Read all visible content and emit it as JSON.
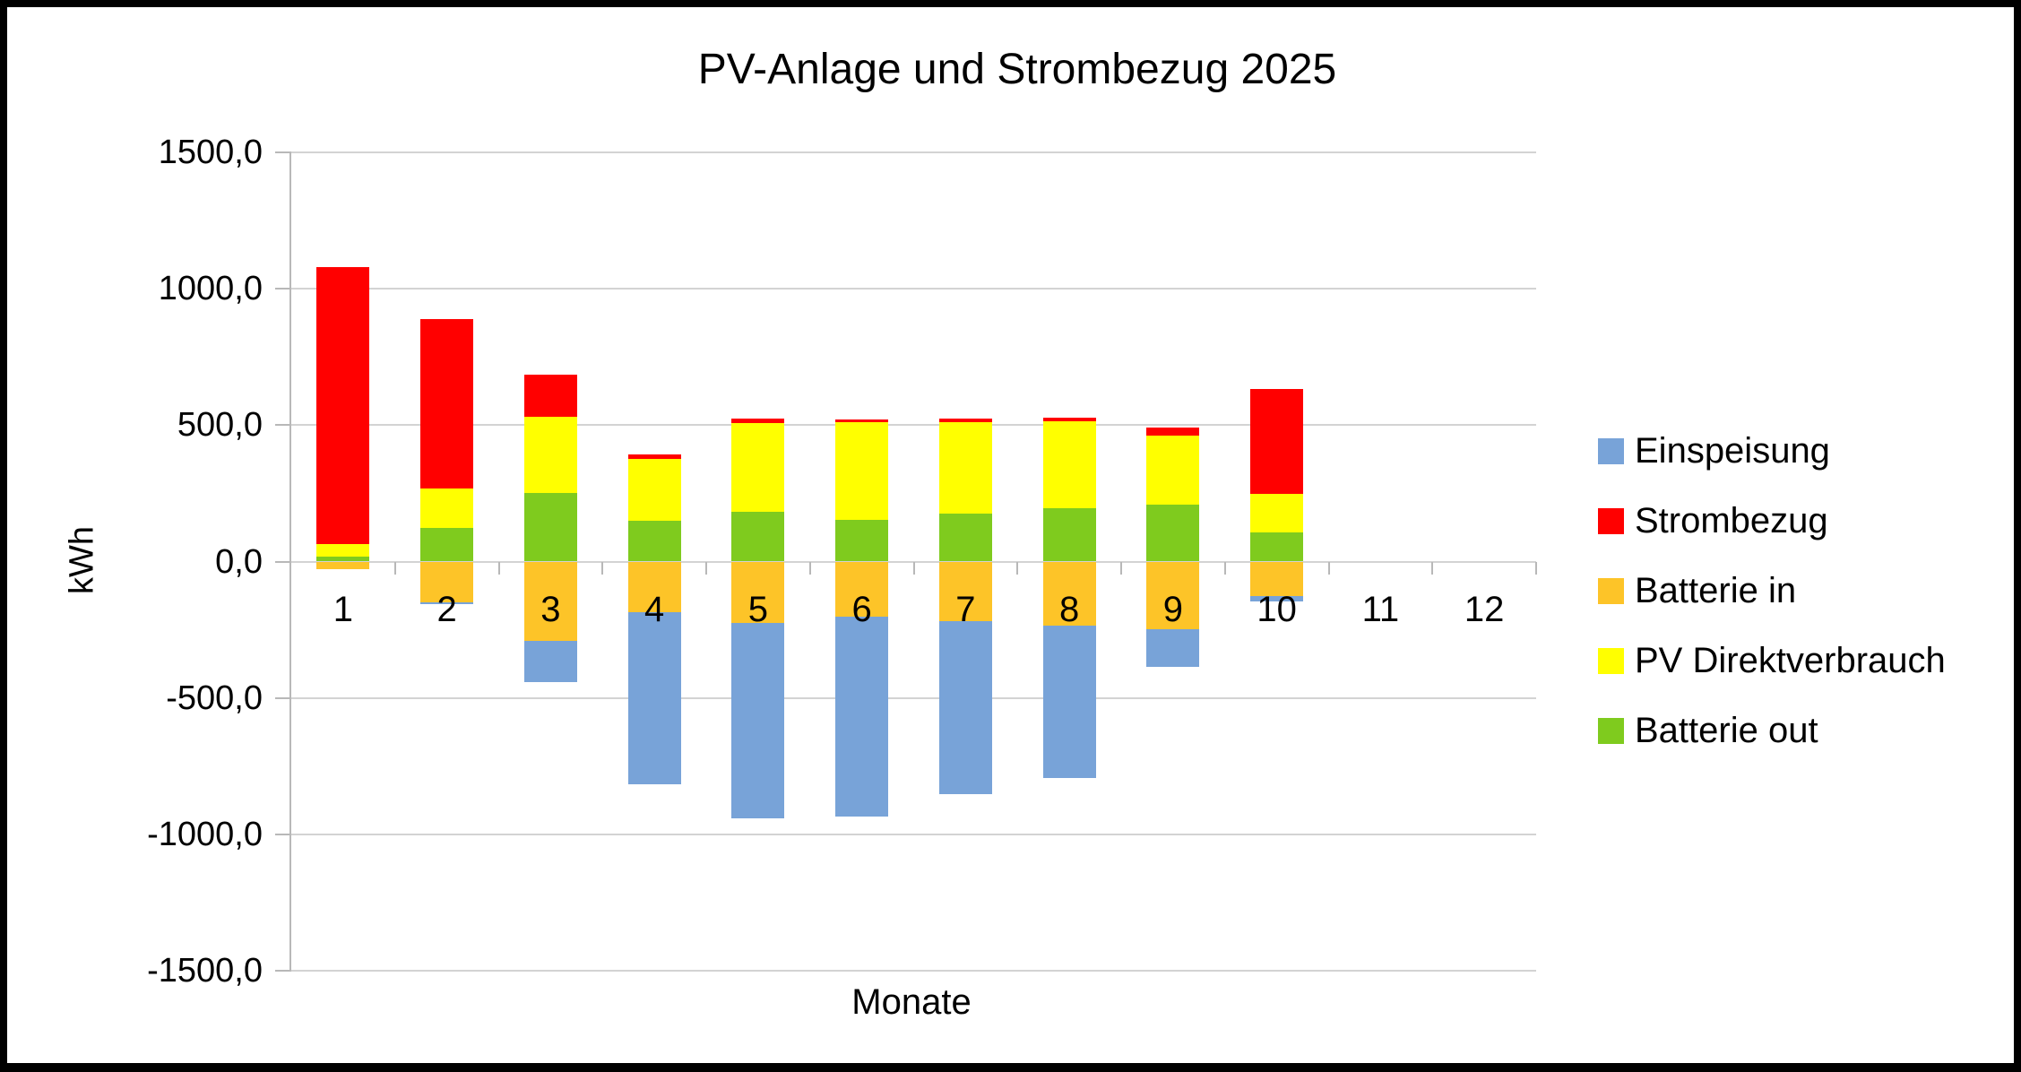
{
  "chart_data": {
    "type": "bar",
    "stacked": true,
    "title": "PV-Anlage und Strombezug 2025",
    "xlabel": "Monate",
    "ylabel": "kWh",
    "ylim": [
      -1500,
      1500
    ],
    "ytick_step": 500,
    "grid": true,
    "legend_position": "right",
    "categories": [
      "1",
      "2",
      "3",
      "4",
      "5",
      "6",
      "7",
      "8",
      "9",
      "10",
      "11",
      "12"
    ],
    "y_ticks": [
      {
        "value": 1500,
        "label": "1500,0"
      },
      {
        "value": 1000,
        "label": "1000,0"
      },
      {
        "value": 500,
        "label": "500,0"
      },
      {
        "value": 0,
        "label": "0,0"
      },
      {
        "value": -500,
        "label": "-500,0"
      },
      {
        "value": -1000,
        "label": "-1000,0"
      },
      {
        "value": -1500,
        "label": "-1500,0"
      }
    ],
    "series": [
      {
        "name": "Einspeisung",
        "color": "#78A3D8",
        "values": [
          0,
          -9,
          -151,
          -629,
          -718,
          -733,
          -634,
          -556,
          -140,
          -22,
          0,
          0
        ]
      },
      {
        "name": "Strombezug",
        "color": "#FF0000",
        "values": [
          1014,
          622,
          153,
          16,
          16,
          11,
          13,
          11,
          30,
          385,
          0,
          0
        ]
      },
      {
        "name": "Batterie in",
        "color": "#FDC428",
        "values": [
          -28,
          -148,
          -291,
          -187,
          -225,
          -201,
          -218,
          -236,
          -247,
          -125,
          0,
          0
        ]
      },
      {
        "name": "PV Direktverbrauch",
        "color": "#FFFF00",
        "values": [
          46,
          145,
          282,
          225,
          325,
          358,
          334,
          320,
          252,
          139,
          0,
          0
        ]
      },
      {
        "name": "Batterie out",
        "color": "#7FCB1E",
        "values": [
          18,
          122,
          250,
          151,
          182,
          152,
          176,
          195,
          209,
          108,
          0,
          0
        ]
      }
    ],
    "stack_order_positive": [
      "Batterie out",
      "PV Direktverbrauch",
      "Strombezug"
    ],
    "stack_order_negative": [
      "Batterie in",
      "Einspeisung"
    ],
    "legend": [
      "Einspeisung",
      "Strombezug",
      "Batterie in",
      "PV Direktverbrauch",
      "Batterie out"
    ]
  },
  "colors": {
    "background": "#FFFFFF",
    "frame_border": "#000000",
    "gridline": "#D3D3D3",
    "axis": "#B8B8B8",
    "text": "#000000"
  }
}
